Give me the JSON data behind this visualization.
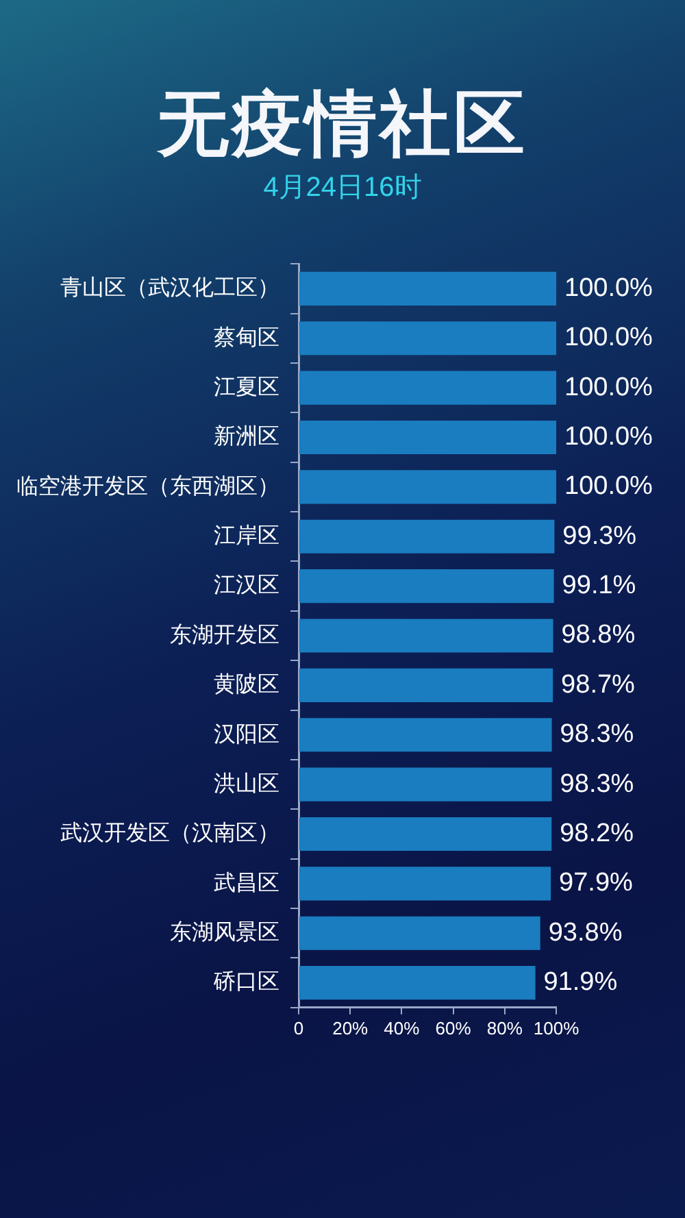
{
  "chart_data": {
    "type": "bar",
    "orientation": "horizontal",
    "title": "无疫情社区",
    "subtitle": "4月24日16时",
    "categories": [
      "青山区（武汉化工区）",
      "蔡甸区",
      "江夏区",
      "新洲区",
      "临空港开发区（东西湖区）",
      "江岸区",
      "江汉区",
      "东湖开发区",
      "黄陂区",
      "汉阳区",
      "洪山区",
      "武汉开发区（汉南区）",
      "武昌区",
      "东湖风景区",
      "硚口区"
    ],
    "values": [
      100,
      100,
      100,
      100,
      100,
      99.3,
      99.1,
      98.8,
      98.7,
      98.3,
      98.3,
      98.2,
      97.9,
      93.8,
      91.9
    ],
    "value_labels": [
      "100.0%",
      "100.0%",
      "100.0%",
      "100.0%",
      "100.0%",
      "99.3%",
      "99.1%",
      "98.8%",
      "98.7%",
      "98.3%",
      "98.3%",
      "98.2%",
      "97.9%",
      "93.8%",
      "91.9%"
    ],
    "color": "#1a7dc0",
    "xlim": [
      0,
      100
    ],
    "xticks": [
      {
        "value": 0,
        "label": "0"
      },
      {
        "value": 20,
        "label": "20%"
      },
      {
        "value": 40,
        "label": "40%"
      },
      {
        "value": 60,
        "label": "60%"
      },
      {
        "value": 80,
        "label": "80%"
      },
      {
        "value": 100,
        "label": "100%"
      }
    ],
    "grid": false,
    "legend": false
  }
}
